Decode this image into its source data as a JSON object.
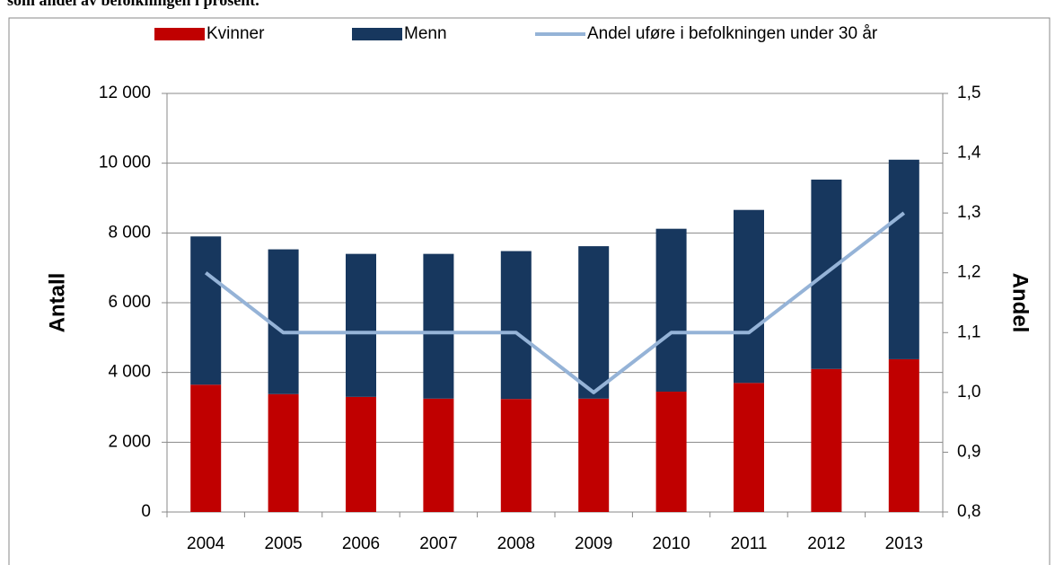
{
  "chart_data": {
    "type": "bar",
    "stacked": true,
    "title": "som andel av befolkningen i prosent.",
    "categories": [
      "2004",
      "2005",
      "2006",
      "2007",
      "2008",
      "2009",
      "2010",
      "2011",
      "2012",
      "2013"
    ],
    "series": [
      {
        "name": "Kvinner",
        "color": "#c00000",
        "values": [
          3650,
          3380,
          3300,
          3250,
          3240,
          3250,
          3450,
          3700,
          4100,
          4380
        ]
      },
      {
        "name": "Menn",
        "color": "#17375e",
        "values": [
          4250,
          4150,
          4100,
          4150,
          4240,
          4370,
          4670,
          4960,
          5430,
          5720
        ]
      },
      {
        "name": "Andel uføre i befolkningen under 30 år",
        "color": "#95b3d7",
        "type": "line",
        "axis": "y2",
        "values": [
          1.2,
          1.1,
          1.1,
          1.1,
          1.1,
          1.0,
          1.1,
          1.1,
          1.2,
          1.3
        ]
      }
    ],
    "ylabel": "Antall",
    "y2label": "Andel",
    "ylim": [
      0,
      12000
    ],
    "yticks": [
      0,
      {
        "value": 2000,
        "label": "2 000"
      },
      {
        "value": 4000,
        "label": "4 000"
      },
      {
        "value": 6000,
        "label": "6 000"
      },
      {
        "value": 8000,
        "label": "8 000"
      },
      {
        "value": 10000,
        "label": "10 000"
      },
      {
        "value": 12000,
        "label": "12 000"
      }
    ],
    "y2lim": [
      0.8,
      1.5
    ],
    "y2ticks": [
      {
        "value": 0.8,
        "label": "0,8"
      },
      {
        "value": 0.9,
        "label": "0,9"
      },
      {
        "value": 1.0,
        "label": "1,0"
      },
      {
        "value": 1.1,
        "label": "1,1"
      },
      {
        "value": 1.2,
        "label": "1,2"
      },
      {
        "value": 1.3,
        "label": "1,3"
      },
      {
        "value": 1.4,
        "label": "1,4"
      },
      {
        "value": 1.5,
        "label": "1,5"
      }
    ],
    "grid": true,
    "legend": "top"
  }
}
